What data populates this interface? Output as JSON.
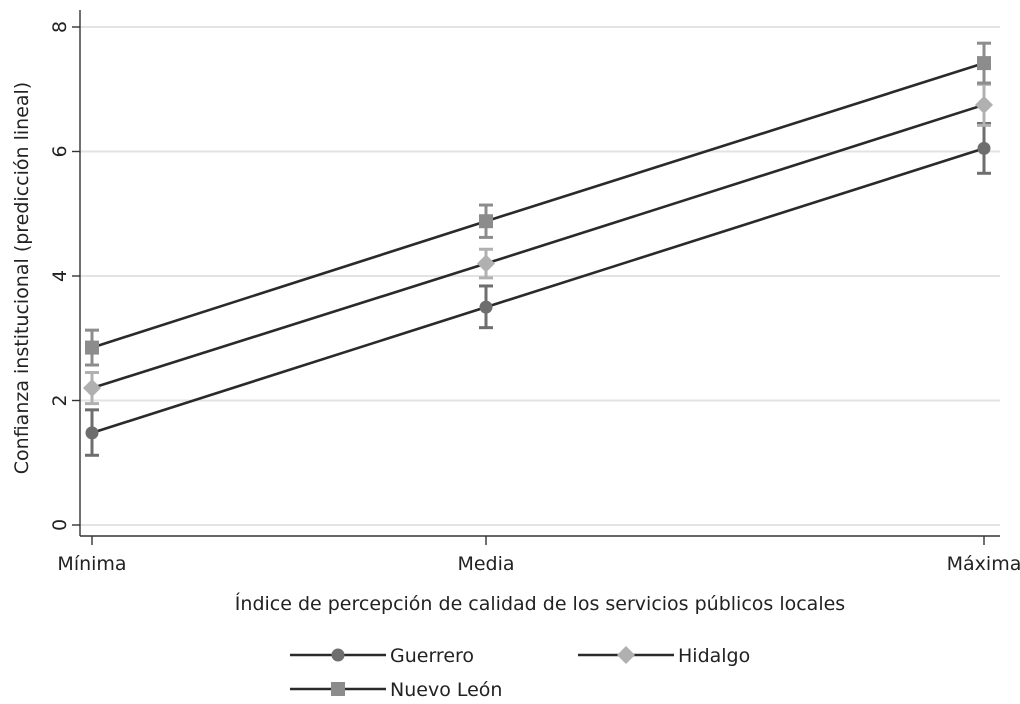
{
  "chart_data": {
    "type": "line",
    "title": "",
    "xlabel": "Índice de percepción de calidad de los servicios públicos locales",
    "ylabel": "Confianza institucional (predicción  lineal)",
    "categories": [
      "Mínima",
      "Media",
      "Máxima"
    ],
    "ylim": [
      0,
      8
    ],
    "yticks": [
      0,
      2,
      4,
      6,
      8
    ],
    "grid": true,
    "legend_position": "bottom",
    "series": [
      {
        "name": "Guerrero",
        "marker": "circle",
        "color": "#6e6e6e",
        "values": [
          1.48,
          3.5,
          6.05
        ],
        "ci_low": [
          1.12,
          3.17,
          5.65
        ],
        "ci_high": [
          1.85,
          3.84,
          6.45
        ]
      },
      {
        "name": "Hidalgo",
        "marker": "diamond",
        "color": "#b0b0b0",
        "values": [
          2.2,
          4.2,
          6.75
        ],
        "ci_low": [
          1.95,
          3.97,
          6.42
        ],
        "ci_high": [
          2.45,
          4.43,
          7.08
        ]
      },
      {
        "name": "Nuevo León",
        "marker": "square",
        "color": "#8c8c8c",
        "values": [
          2.85,
          4.88,
          7.42
        ],
        "ci_low": [
          2.57,
          4.62,
          7.1
        ],
        "ci_high": [
          3.13,
          5.14,
          7.74
        ]
      }
    ]
  }
}
